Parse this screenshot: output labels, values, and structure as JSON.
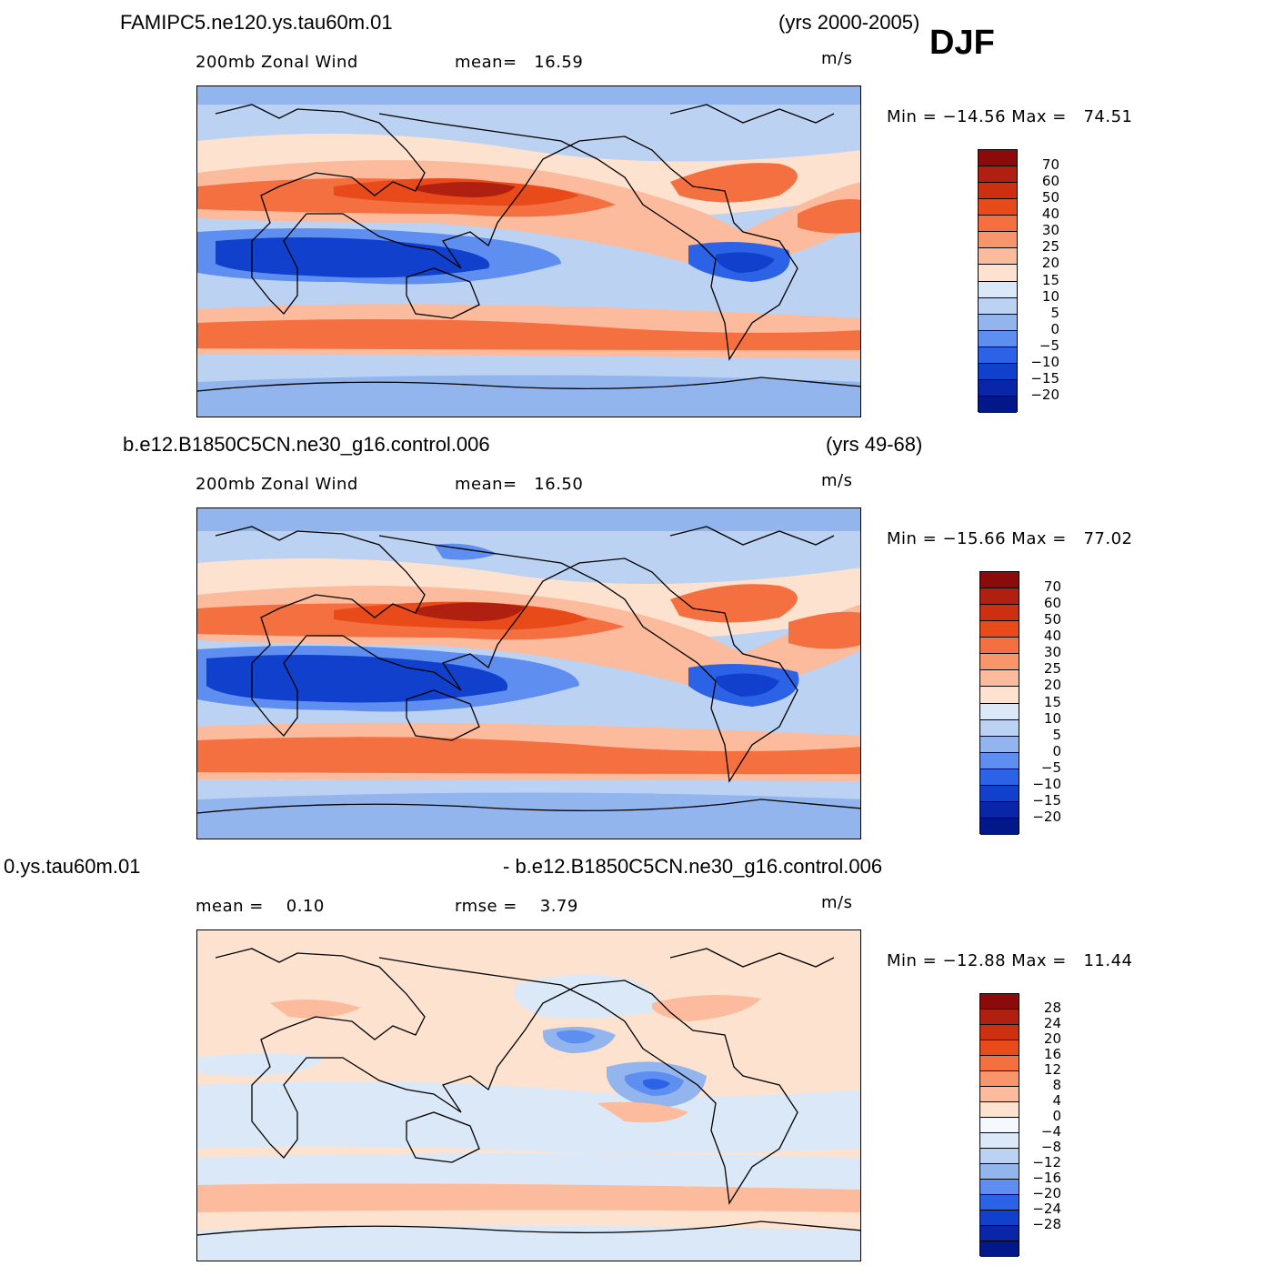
{
  "season": "DJF",
  "panels": [
    {
      "case": "FAMIPC5.ne120.ys.tau60m.01",
      "years": "(yrs 2000-2005)",
      "variable": "200mb Zonal Wind",
      "stat1": "mean=   16.59",
      "stat2": "",
      "units": "m/s",
      "minmax": "Min = −14.56 Max =   74.51",
      "palette": "main",
      "levels": [
        "70",
        "60",
        "50",
        "40",
        "30",
        "25",
        "20",
        "15",
        "10",
        "5",
        "0",
        "−5",
        "−10",
        "−15",
        "−20"
      ]
    },
    {
      "case": "b.e12.B1850C5CN.ne30_g16.control.006",
      "years": "(yrs 49-68)",
      "variable": "200mb Zonal Wind",
      "stat1": "mean=   16.50",
      "stat2": "",
      "units": "m/s",
      "minmax": "Min = −15.66 Max =   77.02",
      "palette": "main",
      "levels": [
        "70",
        "60",
        "50",
        "40",
        "30",
        "25",
        "20",
        "15",
        "10",
        "5",
        "0",
        "−5",
        "−10",
        "−15",
        "−20"
      ]
    },
    {
      "case": "0.ys.tau60m.01",
      "years": "- b.e12.B1850C5CN.ne30_g16.control.006",
      "variable": "mean =    0.10",
      "stat1": "rmse =    3.79",
      "stat2": "",
      "units": "m/s",
      "minmax": "Min = −12.88 Max =   11.44",
      "palette": "diff",
      "levels": [
        "28",
        "24",
        "20",
        "16",
        "12",
        "8",
        "4",
        "0",
        "−4",
        "−8",
        "−12",
        "−16",
        "−20",
        "−24",
        "−28"
      ]
    }
  ],
  "colors": {
    "main": [
      "#8c0a0a",
      "#b02010",
      "#cc3010",
      "#e84a1a",
      "#f47040",
      "#f8956a",
      "#fbbb9c",
      "#fde2d0",
      "#dbe8f7",
      "#bcd2f2",
      "#93b5ee",
      "#5e8ff0",
      "#2c63e6",
      "#1140cc",
      "#0a26a8",
      "#00188a"
    ],
    "diff": [
      "#8c0a0a",
      "#b02010",
      "#cc3010",
      "#e84a1a",
      "#f47040",
      "#f8956a",
      "#fbbb9c",
      "#fde2d0",
      "#f5f8fd",
      "#dbe8f7",
      "#bcd2f2",
      "#93b5ee",
      "#5e8ff0",
      "#2c63e6",
      "#1140cc",
      "#0a26a8",
      "#00188a"
    ]
  }
}
